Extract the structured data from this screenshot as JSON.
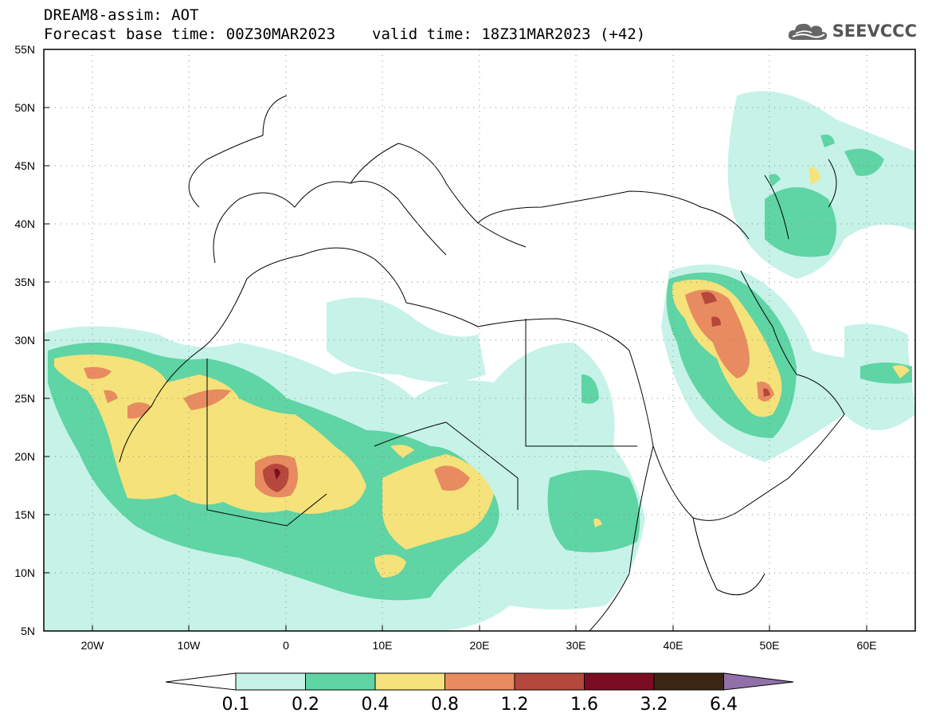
{
  "header": {
    "title": "DREAM8-assim: AOT",
    "base_time": "Forecast base time: 00Z30MAR2023",
    "valid_time": "valid time: 18Z31MAR2023 (+42)"
  },
  "logo": {
    "text": "SEEVCCC",
    "icon": "cloud-icon"
  },
  "map": {
    "lat_labels": [
      "55N",
      "50N",
      "45N",
      "40N",
      "35N",
      "30N",
      "25N",
      "20N",
      "15N",
      "10N",
      "5N"
    ],
    "lon_labels": [
      "20W",
      "10W",
      "0",
      "10E",
      "20E",
      "30E",
      "40E",
      "50E",
      "60E"
    ],
    "lat_range": [
      5,
      55
    ],
    "lon_range": [
      -25,
      65
    ]
  },
  "colorbar": {
    "levels": [
      "0.1",
      "0.2",
      "0.4",
      "0.8",
      "1.2",
      "1.6",
      "3.2",
      "6.4"
    ],
    "colors": {
      "below": "#ffffff",
      "c0": "#c6f2e8",
      "c1": "#5fd4a4",
      "c2": "#f5e27a",
      "c3": "#e88b60",
      "c4": "#b5473c",
      "c5": "#7c0b24",
      "c6": "#3a2613",
      "above": "#9170aa"
    }
  }
}
